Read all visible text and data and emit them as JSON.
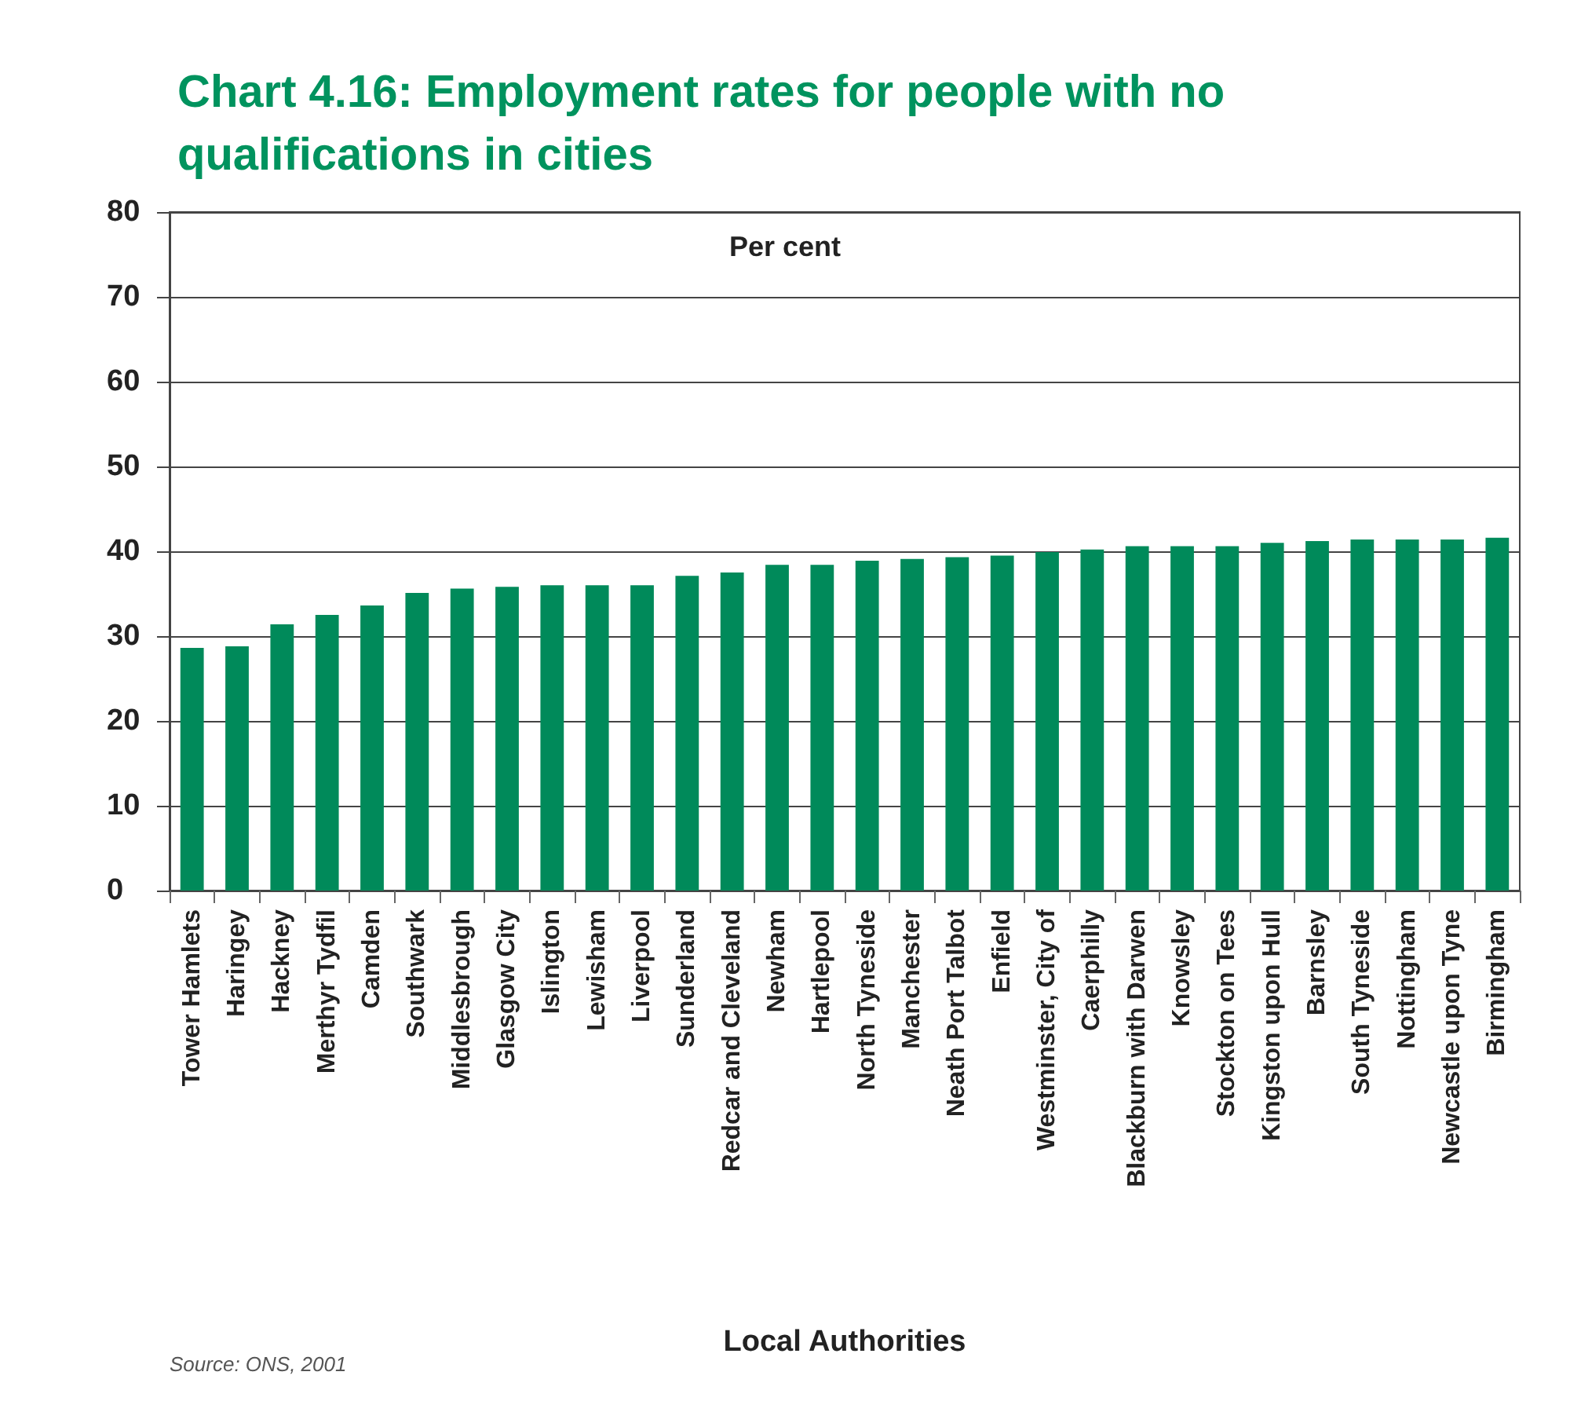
{
  "chart_data": {
    "type": "bar",
    "title": "Chart 4.16: Employment rates for people with no qualifications in cities",
    "ylabel": "Per cent",
    "xlabel": "Local Authorities",
    "annotations": [
      "Source: ONS, 2001"
    ],
    "categories": [
      "Tower Hamlets",
      "Haringey",
      "Hackney",
      "Merthyr Tydfil",
      "Camden",
      "Southwark",
      "Middlesbrough",
      "Glasgow City",
      "Islington",
      "Lewisham",
      "Liverpool",
      "Sunderland",
      "Redcar and Cleveland",
      "Newham",
      "Hartlepool",
      "North Tyneside",
      "Manchester",
      "Neath Port Talbot",
      "Enfield",
      "Westminster, City of",
      "Caerphilly",
      "Blackburn with Darwen",
      "Knowsley",
      "Stockton on Tees",
      "Kingston upon Hull",
      "Barnsley",
      "South Tyneside",
      "Nottingham",
      "Newcastle upon Tyne",
      "Birmingham"
    ],
    "values": [
      28.6,
      28.8,
      31.4,
      32.5,
      33.6,
      35.1,
      35.6,
      35.8,
      36.0,
      36.0,
      36.0,
      37.1,
      37.5,
      38.4,
      38.4,
      38.9,
      39.1,
      39.3,
      39.5,
      39.9,
      40.2,
      40.6,
      40.6,
      40.6,
      41.0,
      41.2,
      41.4,
      41.4,
      41.4,
      41.6
    ],
    "color": "#008a5a",
    "ylim": [
      0,
      80
    ],
    "yticks": [
      0,
      10,
      20,
      30,
      40,
      50,
      60,
      70,
      80
    ],
    "grid": "y"
  }
}
